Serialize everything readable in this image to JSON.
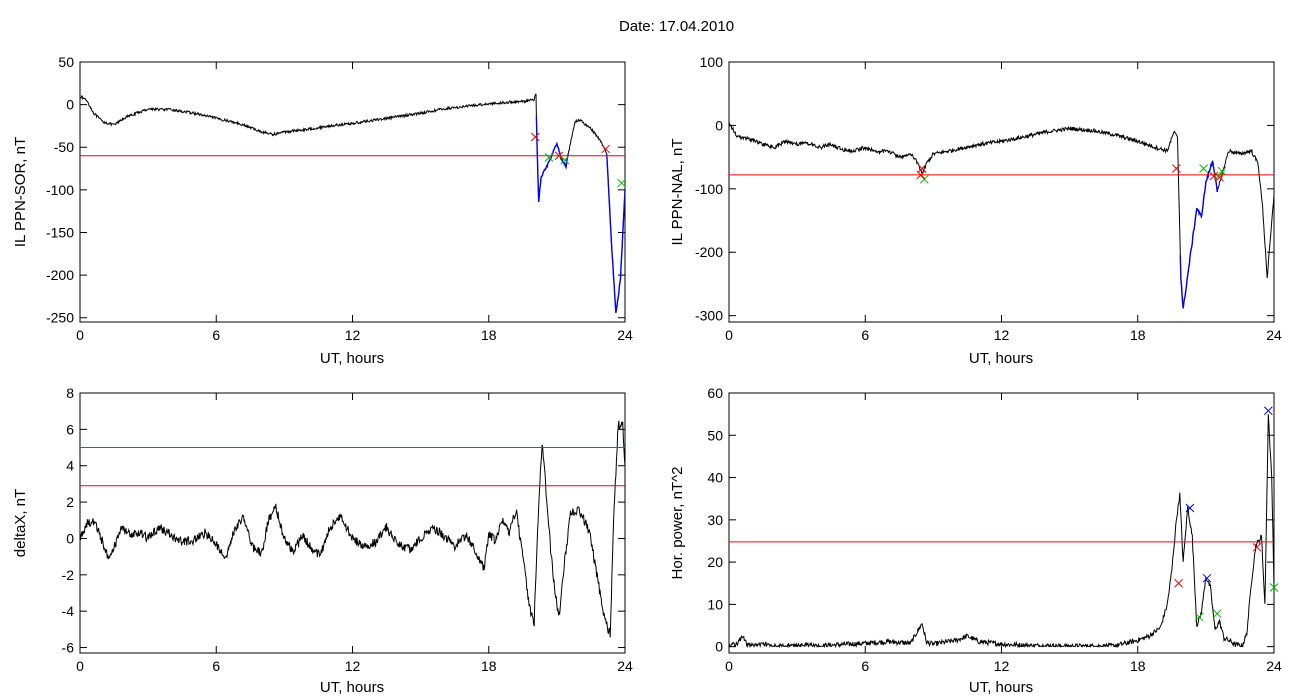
{
  "figure": {
    "title": "Date:  17.04.2010"
  },
  "colors": {
    "trace": "#000000",
    "threshold": "#ff0000",
    "upper_threshold": "#008080",
    "event_line": "#0000ff",
    "start_marker": "#ff0000",
    "end_marker": "#00bb00",
    "peak_marker": "#0000ff"
  },
  "chart_data": [
    {
      "name": "ppn-sor",
      "type": "line",
      "xlabel": "UT, hours",
      "ylabel": "IL PPN-SOR, nT",
      "xlim": [
        0,
        24
      ],
      "ylim": [
        -255,
        50
      ],
      "xticks": [
        0,
        6,
        12,
        18,
        24
      ],
      "yticks": [
        50,
        0,
        -50,
        -100,
        -150,
        -200,
        -250
      ],
      "grid": false,
      "noise": 1.5,
      "series": [
        {
          "points": [
            [
              0,
              10
            ],
            [
              0.3,
              5
            ],
            [
              0.6,
              -10
            ],
            [
              1.0,
              -20
            ],
            [
              1.5,
              -24
            ],
            [
              2.0,
              -15
            ],
            [
              3.0,
              -5
            ],
            [
              4.0,
              -6
            ],
            [
              5.0,
              -10
            ],
            [
              6.0,
              -16
            ],
            [
              7.0,
              -22
            ],
            [
              8.0,
              -32
            ],
            [
              8.5,
              -35
            ],
            [
              9.0,
              -32
            ],
            [
              10.0,
              -29
            ],
            [
              11.0,
              -25
            ],
            [
              12.0,
              -22
            ],
            [
              13.0,
              -18
            ],
            [
              14.0,
              -14
            ],
            [
              15.0,
              -10
            ],
            [
              16.0,
              -5
            ],
            [
              17.0,
              -2
            ],
            [
              18.0,
              1
            ],
            [
              19.0,
              3
            ],
            [
              19.6,
              4
            ],
            [
              20.0,
              6
            ],
            [
              20.08,
              14
            ],
            [
              20.12,
              -40
            ],
            [
              20.2,
              -115
            ],
            [
              20.3,
              -85
            ],
            [
              20.6,
              -70
            ],
            [
              20.8,
              -58
            ],
            [
              21.0,
              -45
            ],
            [
              21.2,
              -65
            ],
            [
              21.4,
              -72
            ],
            [
              21.6,
              -45
            ],
            [
              21.8,
              -20
            ],
            [
              22.0,
              -18
            ],
            [
              22.5,
              -28
            ],
            [
              22.9,
              -42
            ],
            [
              23.2,
              -58
            ],
            [
              23.4,
              -160
            ],
            [
              23.6,
              -245
            ],
            [
              23.8,
              -205
            ],
            [
              24.0,
              -100
            ]
          ]
        }
      ],
      "thresholds": [
        {
          "y": -60,
          "color": "#ff0000"
        }
      ],
      "highlight_segments": [
        [
          20.1,
          21.5
        ],
        [
          23.2,
          24.0
        ]
      ],
      "markers": [
        {
          "x": 20.05,
          "y": -38,
          "color": "#ff0000"
        },
        {
          "x": 20.65,
          "y": -62,
          "color": "#00bb00"
        },
        {
          "x": 21.1,
          "y": -60,
          "color": "#ff0000"
        },
        {
          "x": 21.35,
          "y": -65,
          "color": "#00bb00"
        },
        {
          "x": 23.15,
          "y": -52,
          "color": "#ff0000"
        },
        {
          "x": 23.85,
          "y": -92,
          "color": "#00bb00"
        }
      ]
    },
    {
      "name": "ppn-nal",
      "type": "line",
      "xlabel": "UT, hours",
      "ylabel": "IL PPN-NAL, nT",
      "xlim": [
        0,
        24
      ],
      "ylim": [
        -310,
        100
      ],
      "xticks": [
        0,
        6,
        12,
        18,
        24
      ],
      "yticks": [
        100,
        0,
        -100,
        -200,
        -300
      ],
      "grid": false,
      "noise": 3,
      "series": [
        {
          "points": [
            [
              0,
              5
            ],
            [
              0.3,
              -15
            ],
            [
              0.6,
              -20
            ],
            [
              1.0,
              -22
            ],
            [
              1.5,
              -30
            ],
            [
              2.0,
              -35
            ],
            [
              2.5,
              -25
            ],
            [
              3.0,
              -30
            ],
            [
              3.5,
              -28
            ],
            [
              4.0,
              -35
            ],
            [
              4.5,
              -30
            ],
            [
              5.0,
              -38
            ],
            [
              5.5,
              -40
            ],
            [
              6.0,
              -35
            ],
            [
              6.5,
              -42
            ],
            [
              7.0,
              -40
            ],
            [
              7.5,
              -50
            ],
            [
              8.0,
              -45
            ],
            [
              8.3,
              -58
            ],
            [
              8.5,
              -75
            ],
            [
              8.7,
              -60
            ],
            [
              9.0,
              -45
            ],
            [
              10.0,
              -38
            ],
            [
              11.0,
              -30
            ],
            [
              12.0,
              -25
            ],
            [
              13.0,
              -18
            ],
            [
              14.0,
              -10
            ],
            [
              15.0,
              -5
            ],
            [
              16.0,
              -8
            ],
            [
              17.0,
              -15
            ],
            [
              18.0,
              -25
            ],
            [
              18.8,
              -35
            ],
            [
              19.3,
              -40
            ],
            [
              19.6,
              -10
            ],
            [
              19.75,
              -20
            ],
            [
              19.9,
              -240
            ],
            [
              20.0,
              -290
            ],
            [
              20.3,
              -210
            ],
            [
              20.6,
              -130
            ],
            [
              20.8,
              -145
            ],
            [
              21.0,
              -90
            ],
            [
              21.3,
              -55
            ],
            [
              21.5,
              -105
            ],
            [
              21.7,
              -80
            ],
            [
              22.0,
              -40
            ],
            [
              22.5,
              -45
            ],
            [
              23.0,
              -40
            ],
            [
              23.3,
              -60
            ],
            [
              23.5,
              -130
            ],
            [
              23.7,
              -240
            ],
            [
              24.0,
              -110
            ]
          ]
        }
      ],
      "thresholds": [
        {
          "y": -78,
          "color": "#ff0000"
        }
      ],
      "highlight_segments": [
        [
          19.85,
          21.55
        ]
      ],
      "markers": [
        {
          "x": 8.5,
          "y": -68,
          "color": "#ff0000"
        },
        {
          "x": 8.6,
          "y": -85,
          "color": "#00bb00"
        },
        {
          "x": 8.45,
          "y": -78,
          "color": "#ff0000"
        },
        {
          "x": 19.7,
          "y": -68,
          "color": "#ff0000"
        },
        {
          "x": 20.9,
          "y": -68,
          "color": "#00bb00"
        },
        {
          "x": 21.35,
          "y": -80,
          "color": "#ff0000"
        },
        {
          "x": 21.55,
          "y": -80,
          "color": "#00bb00"
        },
        {
          "x": 21.7,
          "y": -72,
          "color": "#00bb00"
        },
        {
          "x": 21.6,
          "y": -82,
          "color": "#ff0000"
        }
      ]
    },
    {
      "name": "deltax",
      "type": "line",
      "xlabel": "UT, hours",
      "ylabel": "deltaX, nT",
      "xlim": [
        0,
        24
      ],
      "ylim": [
        -6.3,
        8
      ],
      "xticks": [
        0,
        6,
        12,
        18,
        24
      ],
      "yticks": [
        8,
        6,
        4,
        2,
        0,
        -2,
        -4,
        -6
      ],
      "grid": false,
      "noise": 0.25,
      "series": [
        {
          "points": [
            [
              0,
              0
            ],
            [
              0.3,
              0.8
            ],
            [
              0.6,
              1.0
            ],
            [
              1.0,
              -0.2
            ],
            [
              1.3,
              -1.2
            ],
            [
              1.8,
              0.5
            ],
            [
              2.2,
              0.2
            ],
            [
              2.6,
              0.4
            ],
            [
              3.0,
              0.0
            ],
            [
              3.5,
              0.6
            ],
            [
              4.0,
              0.2
            ],
            [
              4.5,
              -0.2
            ],
            [
              5.0,
              -0.1
            ],
            [
              5.5,
              0.3
            ],
            [
              6.0,
              -0.3
            ],
            [
              6.4,
              -1.2
            ],
            [
              6.8,
              0.4
            ],
            [
              7.2,
              1.2
            ],
            [
              7.6,
              -0.5
            ],
            [
              8.0,
              -0.8
            ],
            [
              8.3,
              1.0
            ],
            [
              8.6,
              1.8
            ],
            [
              9.0,
              0.0
            ],
            [
              9.4,
              -0.8
            ],
            [
              9.8,
              0.2
            ],
            [
              10.2,
              -0.6
            ],
            [
              10.6,
              -0.9
            ],
            [
              11.0,
              0.6
            ],
            [
              11.5,
              1.2
            ],
            [
              12.0,
              0.0
            ],
            [
              12.5,
              -0.4
            ],
            [
              13.0,
              -0.2
            ],
            [
              13.5,
              0.6
            ],
            [
              14.0,
              -0.3
            ],
            [
              14.5,
              -0.6
            ],
            [
              15.0,
              0.0
            ],
            [
              15.5,
              0.6
            ],
            [
              16.0,
              0.2
            ],
            [
              16.5,
              -0.4
            ],
            [
              17.0,
              0.2
            ],
            [
              17.5,
              -0.9
            ],
            [
              17.8,
              -1.7
            ],
            [
              18.0,
              0.3
            ],
            [
              18.3,
              -0.2
            ],
            [
              18.6,
              1.0
            ],
            [
              18.9,
              0.4
            ],
            [
              19.2,
              1.6
            ],
            [
              19.5,
              -1.0
            ],
            [
              19.8,
              -3.8
            ],
            [
              20.0,
              -4.6
            ],
            [
              20.15,
              0.5
            ],
            [
              20.35,
              5.3
            ],
            [
              20.55,
              2.2
            ],
            [
              20.75,
              -1.0
            ],
            [
              20.9,
              -2.8
            ],
            [
              21.1,
              -4.3
            ],
            [
              21.35,
              -1.2
            ],
            [
              21.6,
              1.5
            ],
            [
              22.0,
              1.5
            ],
            [
              22.4,
              0.5
            ],
            [
              22.7,
              -1.5
            ],
            [
              23.0,
              -3.8
            ],
            [
              23.2,
              -4.8
            ],
            [
              23.35,
              -5.2
            ],
            [
              23.5,
              1.0
            ],
            [
              23.7,
              6.3
            ],
            [
              23.9,
              6.2
            ],
            [
              24.0,
              4.0
            ]
          ]
        }
      ],
      "thresholds": [
        {
          "y": 5.0,
          "color": "#008080"
        },
        {
          "y": 2.9,
          "color": "#ff0000"
        }
      ],
      "highlight_segments": [],
      "markers": []
    },
    {
      "name": "hor-power",
      "type": "line",
      "xlabel": "UT, hours",
      "ylabel": "Hor. power, nT^2",
      "xlim": [
        0,
        24
      ],
      "ylim": [
        -1.5,
        60
      ],
      "xticks": [
        0,
        6,
        12,
        18,
        24
      ],
      "yticks": [
        60,
        50,
        40,
        30,
        20,
        10,
        0
      ],
      "grid": false,
      "noise": 0.6,
      "series": [
        {
          "points": [
            [
              0,
              0.5
            ],
            [
              0.3,
              0.4
            ],
            [
              0.6,
              2.5
            ],
            [
              0.8,
              0.3
            ],
            [
              1.5,
              0.5
            ],
            [
              2.0,
              0.2
            ],
            [
              3.0,
              0.3
            ],
            [
              4.0,
              0.2
            ],
            [
              5.0,
              0.5
            ],
            [
              6.0,
              0.8
            ],
            [
              7.0,
              1.2
            ],
            [
              8.0,
              0.8
            ],
            [
              8.5,
              5.5
            ],
            [
              8.7,
              1.0
            ],
            [
              9.0,
              0.6
            ],
            [
              10.0,
              1.5
            ],
            [
              10.5,
              2.5
            ],
            [
              11.0,
              1.2
            ],
            [
              12.0,
              0.6
            ],
            [
              13.0,
              0.3
            ],
            [
              14.0,
              0.2
            ],
            [
              15.0,
              0.1
            ],
            [
              16.0,
              0.1
            ],
            [
              17.0,
              0.2
            ],
            [
              18.0,
              1.5
            ],
            [
              18.5,
              2.5
            ],
            [
              19.0,
              4.5
            ],
            [
              19.3,
              10.0
            ],
            [
              19.5,
              18.0
            ],
            [
              19.7,
              30.0
            ],
            [
              19.85,
              36.0
            ],
            [
              20.0,
              20.0
            ],
            [
              20.2,
              33.0
            ],
            [
              20.4,
              26.0
            ],
            [
              20.6,
              5.0
            ],
            [
              20.8,
              8.0
            ],
            [
              21.0,
              16.5
            ],
            [
              21.2,
              14.0
            ],
            [
              21.4,
              4.0
            ],
            [
              21.6,
              6.0
            ],
            [
              21.8,
              2.0
            ],
            [
              22.0,
              1.5
            ],
            [
              22.3,
              0.5
            ],
            [
              22.6,
              0.2
            ],
            [
              22.8,
              3.0
            ],
            [
              23.0,
              15.0
            ],
            [
              23.2,
              24.0
            ],
            [
              23.45,
              26.0
            ],
            [
              23.6,
              10.0
            ],
            [
              23.75,
              55.0
            ],
            [
              23.9,
              40.0
            ],
            [
              24.0,
              14.0
            ]
          ]
        }
      ],
      "thresholds": [
        {
          "y": 24.8,
          "color": "#ff0000"
        }
      ],
      "highlight_segments": [],
      "markers": [
        {
          "x": 19.8,
          "y": 15.0,
          "color": "#ff0000"
        },
        {
          "x": 20.3,
          "y": 32.8,
          "color": "#0000ff"
        },
        {
          "x": 20.7,
          "y": 7.0,
          "color": "#00bb00"
        },
        {
          "x": 21.05,
          "y": 16.2,
          "color": "#0000ff"
        },
        {
          "x": 21.5,
          "y": 7.8,
          "color": "#00bb00"
        },
        {
          "x": 23.25,
          "y": 23.5,
          "color": "#ff0000"
        },
        {
          "x": 23.75,
          "y": 55.8,
          "color": "#0000ff"
        },
        {
          "x": 24.0,
          "y": 14.0,
          "color": "#00bb00"
        }
      ]
    }
  ]
}
